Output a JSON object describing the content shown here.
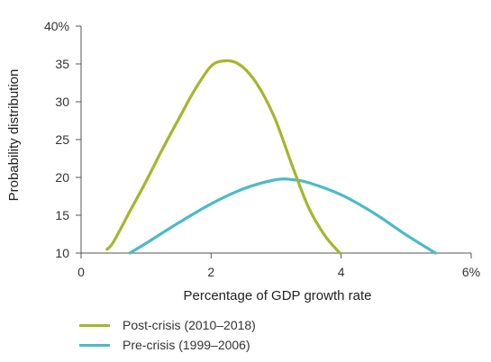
{
  "chart_data": {
    "type": "line",
    "xlabel": "Percentage of GDP growth rate",
    "ylabel": "Probability distribution",
    "xlim": [
      0,
      6
    ],
    "ylim": [
      10,
      40
    ],
    "x_ticks": [
      0,
      2,
      4,
      6
    ],
    "x_tick_labels": [
      "0",
      "2",
      "4",
      "6%"
    ],
    "y_ticks": [
      10,
      15,
      20,
      25,
      30,
      35,
      40
    ],
    "y_tick_labels": [
      "10",
      "15",
      "20",
      "25",
      "30",
      "35",
      "40%"
    ],
    "legend_position": "bottom-left",
    "series": [
      {
        "name": "Post-crisis (2010–2018)",
        "color": "#a6b52d",
        "x": [
          0.4,
          0.5,
          0.75,
          1.0,
          1.25,
          1.5,
          1.75,
          2.0,
          2.2,
          2.4,
          2.6,
          2.8,
          3.0,
          3.25,
          3.5,
          3.75,
          3.98
        ],
        "y": [
          10.5,
          11.5,
          15.5,
          19.5,
          23.7,
          27.7,
          31.6,
          34.7,
          35.4,
          35.1,
          33.6,
          31.0,
          27.4,
          21.5,
          16.0,
          12.3,
          10.0
        ]
      },
      {
        "name": "Pre-crisis (1999–2006)",
        "color": "#4bbac8",
        "x": [
          0.75,
          1.0,
          1.5,
          2.0,
          2.5,
          3.0,
          3.25,
          3.5,
          4.0,
          4.5,
          5.0,
          5.45
        ],
        "y": [
          10.0,
          11.3,
          14.0,
          16.5,
          18.5,
          19.7,
          19.7,
          19.3,
          17.7,
          15.3,
          12.4,
          10.0
        ]
      }
    ]
  }
}
